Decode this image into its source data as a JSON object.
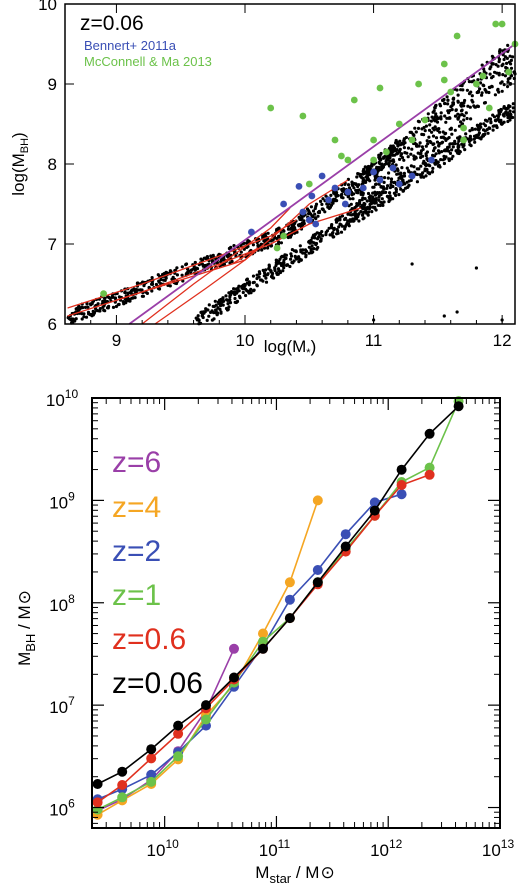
{
  "chart_data": [
    {
      "type": "scatter",
      "panel": "top",
      "annotation": "z=0.06",
      "xlabel": "log(M",
      "xlabel_sub": "*",
      "xlabel_tail": ")",
      "ylabel": "log(M",
      "ylabel_sub": "BH",
      "ylabel_tail": ")",
      "xlim": [
        8.6,
        12.1
      ],
      "ylim": [
        6,
        10
      ],
      "xticks": [
        9,
        10,
        11,
        12
      ],
      "yticks": [
        6,
        7,
        8,
        9,
        10
      ],
      "colors": {
        "sim": "#000000",
        "bennert": "#3a4fb5",
        "mcconnell": "#6cc24a",
        "fit": "#9a3fa8",
        "contour": "#e0301e"
      },
      "series": [
        {
          "name": "Bennert+ 2011a",
          "color": "#3a4fb5",
          "points": [
            [
              10.05,
              7.15
            ],
            [
              10.3,
              7.5
            ],
            [
              10.42,
              7.72
            ],
            [
              10.45,
              7.4
            ],
            [
              10.5,
              7.3
            ],
            [
              10.52,
              7.6
            ],
            [
              10.55,
              7.25
            ],
            [
              10.6,
              7.85
            ],
            [
              10.65,
              7.55
            ],
            [
              10.7,
              7.7
            ],
            [
              10.78,
              7.5
            ],
            [
              10.8,
              7.65
            ],
            [
              10.92,
              7.7
            ],
            [
              11.0,
              7.9
            ],
            [
              11.05,
              7.8
            ],
            [
              11.15,
              7.95
            ],
            [
              11.2,
              7.75
            ],
            [
              11.3,
              7.85
            ],
            [
              11.45,
              8.05
            ]
          ]
        },
        {
          "name": "McConnell & Ma 2013",
          "color": "#6cc24a",
          "points": [
            [
              8.9,
              6.38
            ],
            [
              10.2,
              8.7
            ],
            [
              10.25,
              6.95
            ],
            [
              10.3,
              7.1
            ],
            [
              10.45,
              8.6
            ],
            [
              10.5,
              7.75
            ],
            [
              10.7,
              8.3
            ],
            [
              10.75,
              8.1
            ],
            [
              10.8,
              8.05
            ],
            [
              10.85,
              8.8
            ],
            [
              11.0,
              8.3
            ],
            [
              11.0,
              8.05
            ],
            [
              11.05,
              8.95
            ],
            [
              11.1,
              8.15
            ],
            [
              11.2,
              8.5
            ],
            [
              11.3,
              8.3
            ],
            [
              11.35,
              9.0
            ],
            [
              11.4,
              8.55
            ],
            [
              11.55,
              9.25
            ],
            [
              11.6,
              8.9
            ],
            [
              11.65,
              9.6
            ],
            [
              11.7,
              8.45
            ],
            [
              11.7,
              8.3
            ],
            [
              11.8,
              9.0
            ],
            [
              11.85,
              9.1
            ],
            [
              11.9,
              8.7
            ],
            [
              11.95,
              9.75
            ],
            [
              12.0,
              9.75
            ],
            [
              12.05,
              9.15
            ],
            [
              12.1,
              9.5
            ],
            [
              11.55,
              9.05
            ]
          ]
        }
      ],
      "fit_line": [
        [
          9.1,
          6.0
        ],
        [
          12.1,
          9.5
        ]
      ]
    },
    {
      "type": "line",
      "panel": "bottom",
      "xlabel": "M",
      "xlabel_sub": "star",
      "xlabel_tail": " / M",
      "ylabel": "M",
      "ylabel_sub": "BH",
      "ylabel_tail": " / M",
      "log_x": true,
      "log_y": true,
      "xlim_log10": [
        9.35,
        13.0
      ],
      "ylim_log10": [
        5.8,
        10.0
      ],
      "xtick_exponents": [
        10,
        11,
        12,
        13
      ],
      "ytick_exponents": [
        6,
        7,
        8,
        9,
        10
      ],
      "tick_base": "10",
      "series": [
        {
          "name": "z=6",
          "color": "#9a3fa8",
          "x_log10": [
            9.4,
            9.62,
            9.88,
            10.12,
            10.37,
            10.62
          ],
          "y_log10": [
            5.97,
            6.08,
            6.27,
            6.55,
            6.95,
            7.55
          ]
        },
        {
          "name": "z=4",
          "color": "#f5a623",
          "x_log10": [
            9.4,
            9.62,
            9.88,
            10.12,
            10.37,
            10.62,
            10.88,
            11.12,
            11.37
          ],
          "y_log10": [
            5.93,
            6.07,
            6.23,
            6.47,
            6.9,
            7.2,
            7.7,
            8.2,
            9.0
          ]
        },
        {
          "name": "z=2",
          "color": "#3a4fb5",
          "x_log10": [
            9.4,
            9.62,
            9.88,
            10.12,
            10.37,
            10.62,
            10.88,
            11.12,
            11.37,
            11.62,
            11.88,
            12.12
          ],
          "y_log10": [
            6.08,
            6.18,
            6.32,
            6.54,
            6.8,
            7.18,
            7.58,
            8.03,
            8.32,
            8.67,
            8.98,
            9.06
          ]
        },
        {
          "name": "z=1",
          "color": "#6cc24a",
          "x_log10": [
            9.4,
            9.62,
            9.88,
            10.12,
            10.37,
            10.62,
            10.88,
            11.12,
            11.37,
            11.62,
            11.88,
            12.12,
            12.37,
            12.63
          ],
          "y_log10": [
            5.98,
            6.1,
            6.25,
            6.5,
            6.86,
            7.22,
            7.62,
            7.85,
            8.2,
            8.52,
            8.85,
            9.18,
            9.32,
            9.97
          ]
        },
        {
          "name": "z=0.6",
          "color": "#e0301e",
          "x_log10": [
            9.4,
            9.62,
            9.88,
            10.12,
            10.37,
            10.62,
            10.88,
            11.12,
            11.37,
            11.62,
            11.88,
            12.12,
            12.37
          ],
          "y_log10": [
            6.05,
            6.22,
            6.48,
            6.72,
            6.97,
            7.25,
            7.55,
            7.85,
            8.18,
            8.5,
            8.85,
            9.15,
            9.25
          ]
        },
        {
          "name": "z=0.06",
          "color": "#000000",
          "x_log10": [
            9.4,
            9.62,
            9.88,
            10.12,
            10.37,
            10.62,
            10.88,
            11.12,
            11.37,
            11.62,
            11.88,
            12.12,
            12.37,
            12.63
          ],
          "y_log10": [
            6.23,
            6.35,
            6.57,
            6.8,
            7.0,
            7.27,
            7.55,
            7.85,
            8.2,
            8.55,
            8.9,
            9.3,
            9.65,
            9.92
          ]
        }
      ]
    }
  ]
}
